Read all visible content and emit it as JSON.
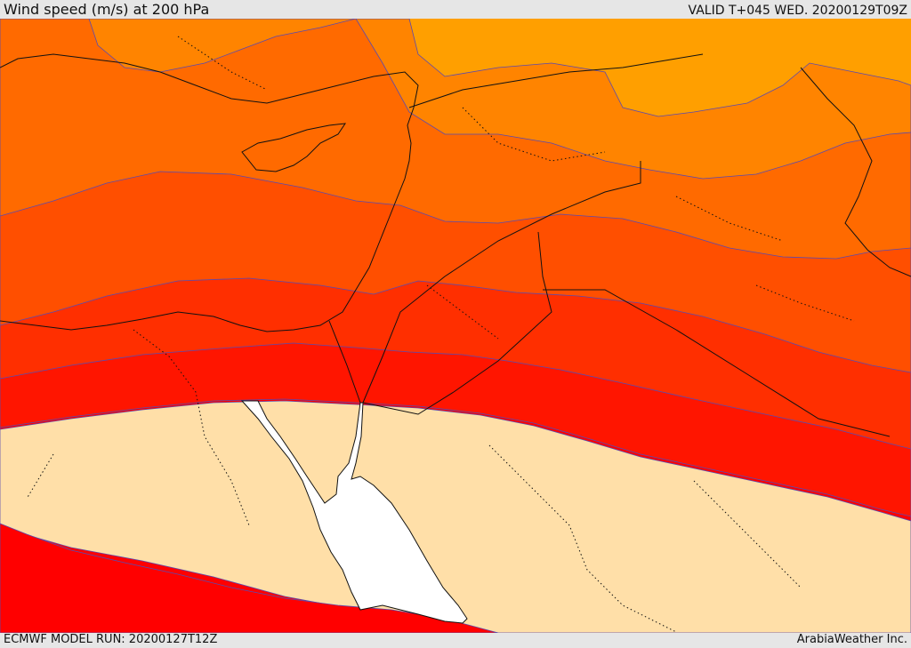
{
  "header": {
    "title": "Wind speed (m/s) at 200 hPa",
    "valid": "VALID T+045 WED. 20200129T09Z"
  },
  "footer": {
    "model_run": "ECMWF MODEL RUN: 20200127T12Z",
    "credit": "ArabiaWeather Inc."
  },
  "colors": {
    "band_light_orange": "#ff9f00",
    "band_orange": "#ff8400",
    "band_dark_orange": "#ff6a00",
    "band_orange_red": "#ff4f00",
    "band_red_orange": "#ff2f00",
    "band_red": "#ff1500",
    "band_pure_red": "#ff0000",
    "band_pale": "#ffdfa8",
    "sea": "#ffffff",
    "contour_line": "#5a4ab0",
    "coast_border": "#111111"
  }
}
